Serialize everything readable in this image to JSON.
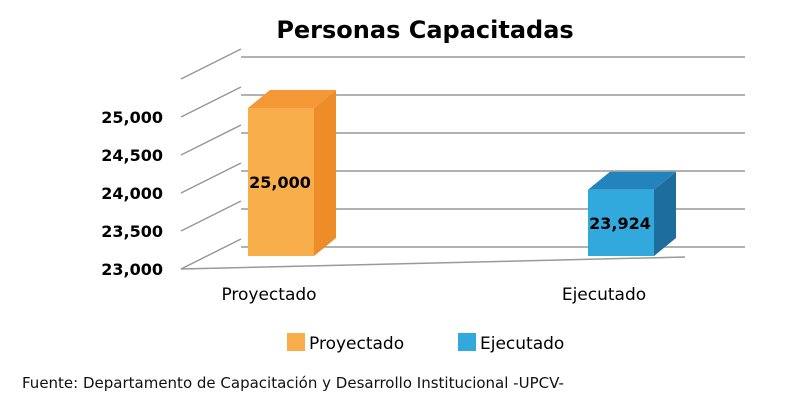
{
  "chart_data": {
    "type": "bar",
    "title": "Personas Capacitadas",
    "categories": [
      "Proyectado",
      "Ejecutado"
    ],
    "values": [
      25000,
      23924
    ],
    "data_labels": [
      "25,000",
      "23,924"
    ],
    "yticks": [
      23000,
      23500,
      24000,
      24500,
      25000
    ],
    "ytick_labels": [
      "23,000",
      "23,500",
      "24,000",
      "24,500",
      "25,000"
    ],
    "ylim": [
      23000,
      25500
    ],
    "xlabel": "",
    "ylabel": "",
    "grid": true,
    "legend_position": "bottom",
    "legend": [
      "Proyectado",
      "Ejecutado"
    ],
    "colors": {
      "Proyectado": {
        "front": "#F8AF4B",
        "side": "#EE8C28",
        "top": "#F39834"
      },
      "Ejecutado": {
        "front": "#31A9DD",
        "side": "#1E6E9D",
        "top": "#2383BC"
      },
      "grid": "#999999"
    }
  },
  "footer": {
    "source": "Fuente: Departamento de Capacitación y Desarrollo Institucional -UPCV-"
  }
}
